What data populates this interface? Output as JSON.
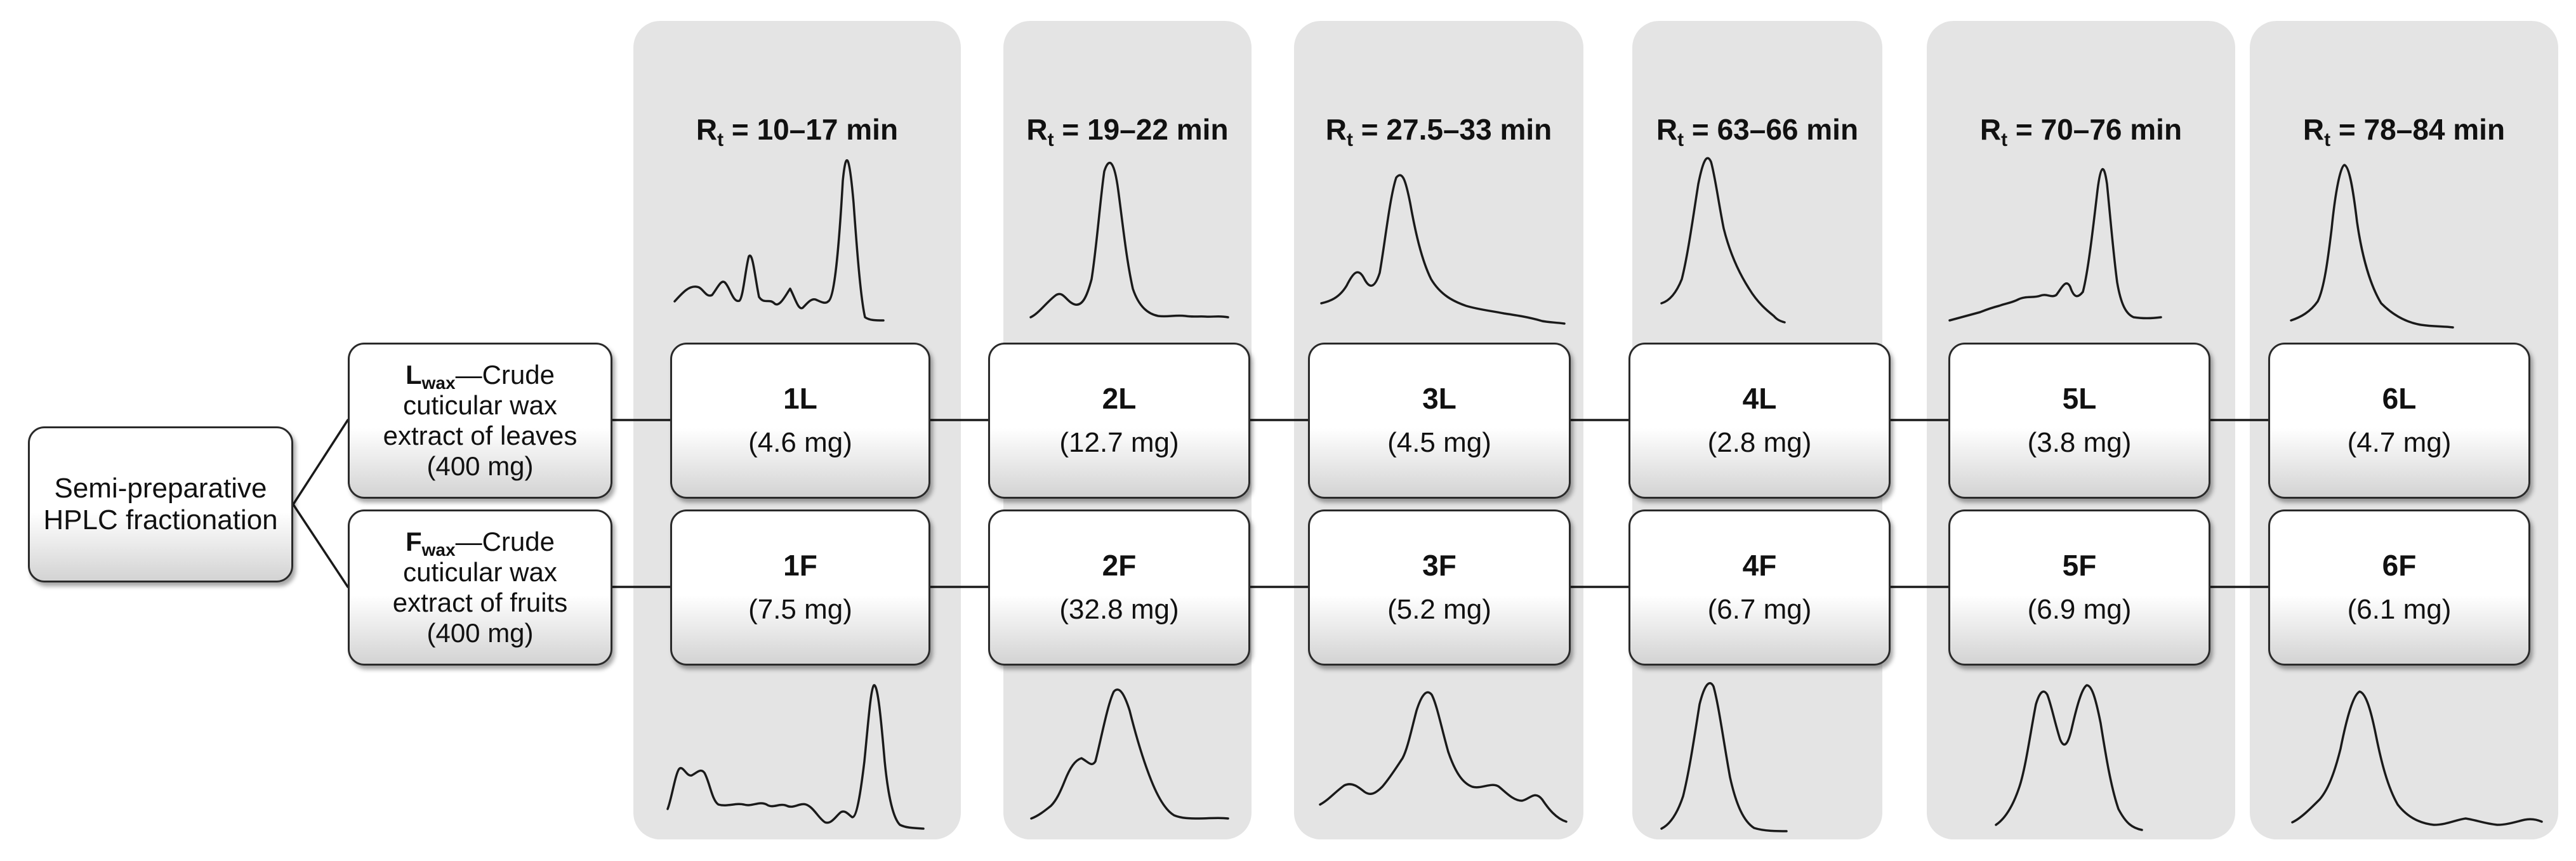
{
  "root": {
    "label_line1": "Semi-preparative",
    "label_line2": "HPLC fractionation"
  },
  "sources": [
    {
      "symbol": "L",
      "subscript": "wax",
      "dash": "—Crude",
      "line2": "cuticular wax",
      "line3": "extract of leaves",
      "line4": "(400 mg)"
    },
    {
      "symbol": "F",
      "subscript": "wax",
      "dash": "—Crude",
      "line2": "cuticular wax",
      "line3": "extract of fruits",
      "line4": "(400 mg)"
    }
  ],
  "retention_prefix": "R",
  "retention_sub": "t",
  "columns": [
    {
      "rt": " = 10–17 min",
      "L": {
        "id": "1L",
        "mass": "(4.6 mg)"
      },
      "F": {
        "id": "1F",
        "mass": "(7.5 mg)"
      }
    },
    {
      "rt": " = 19–22 min",
      "L": {
        "id": "2L",
        "mass": "(12.7 mg)"
      },
      "F": {
        "id": "2F",
        "mass": "(32.8 mg)"
      }
    },
    {
      "rt": " = 27.5–33 min",
      "L": {
        "id": "3L",
        "mass": "(4.5 mg)"
      },
      "F": {
        "id": "3F",
        "mass": "(5.2 mg)"
      }
    },
    {
      "rt": " = 63–66 min",
      "L": {
        "id": "4L",
        "mass": "(2.8 mg)"
      },
      "F": {
        "id": "4F",
        "mass": "(6.7 mg)"
      }
    },
    {
      "rt": " = 70–76 min",
      "L": {
        "id": "5L",
        "mass": "(3.8 mg)"
      },
      "F": {
        "id": "5F",
        "mass": "(6.9 mg)"
      }
    },
    {
      "rt": " = 78–84 min",
      "L": {
        "id": "6L",
        "mass": "(4.7 mg)"
      },
      "F": {
        "id": "6F",
        "mass": "(6.1 mg)"
      }
    }
  ],
  "colors": {
    "panel": "#e4e4e4",
    "box_border": "#2a2a2a",
    "trace": "#1a1a1a",
    "connector": "#1a1a1a"
  }
}
